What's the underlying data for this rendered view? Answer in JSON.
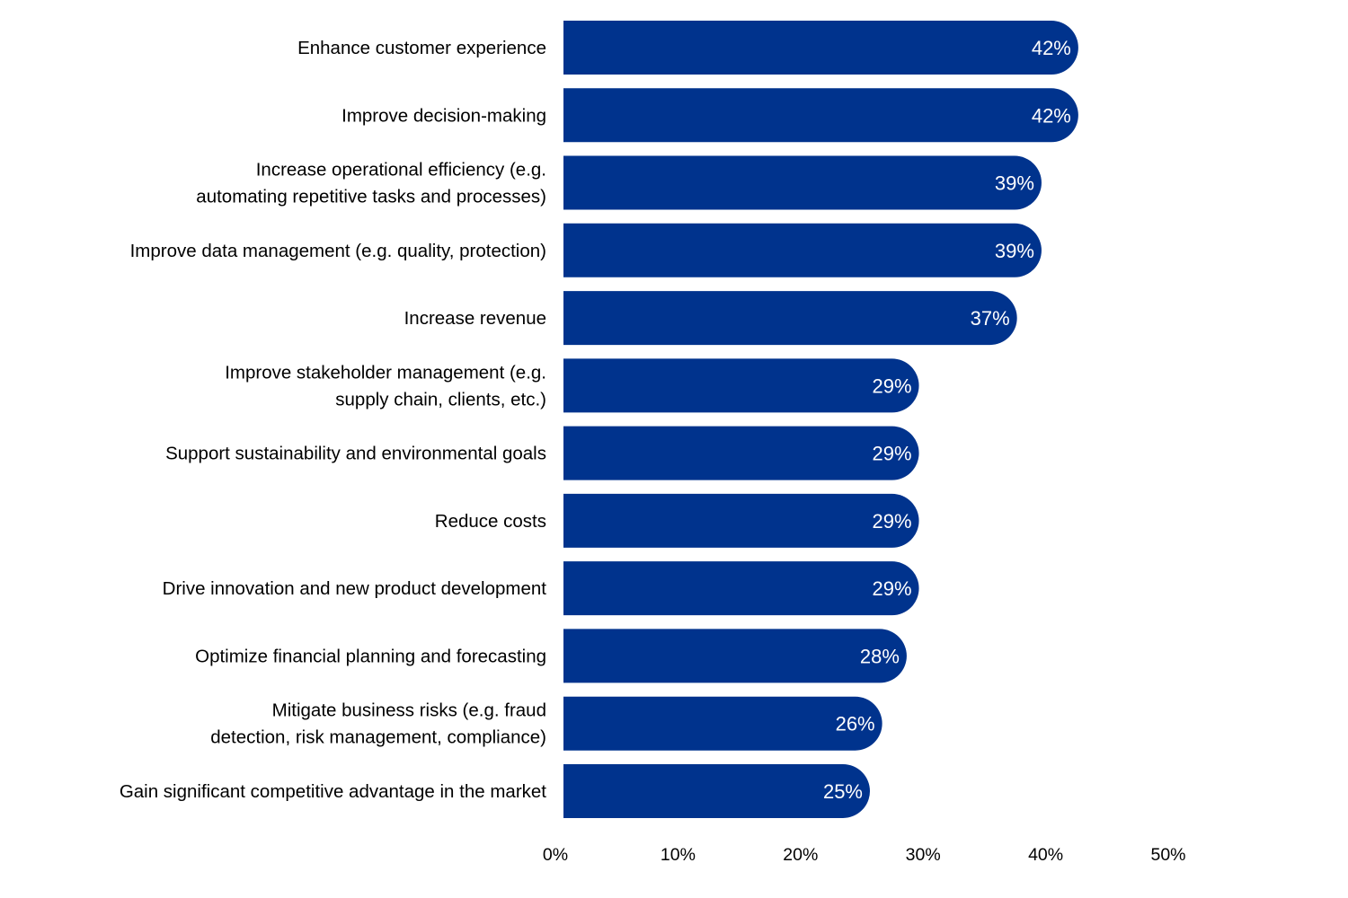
{
  "chart_data": {
    "type": "bar",
    "orientation": "horizontal",
    "title": "",
    "xlabel": "",
    "ylabel": "",
    "xlim": [
      0,
      50
    ],
    "grid": false,
    "bar_color": "#00338D",
    "value_label_color": "#FFFFFF",
    "categories": [
      [
        "Enhance customer experience"
      ],
      [
        "Improve decision-making"
      ],
      [
        "Increase operational efficiency (e.g.",
        "automating repetitive tasks and processes)"
      ],
      [
        "Improve data management (e.g. quality, protection)"
      ],
      [
        "Increase revenue"
      ],
      [
        "Improve stakeholder management (e.g.",
        "supply chain, clients, etc.)"
      ],
      [
        "Support sustainability and environmental goals"
      ],
      [
        "Reduce costs"
      ],
      [
        "Drive innovation and new product development"
      ],
      [
        "Optimize financial planning and forecasting"
      ],
      [
        "Mitigate business risks (e.g. fraud",
        "detection, risk management, compliance)"
      ],
      [
        "Gain significant competitive advantage in the market"
      ]
    ],
    "values": [
      42,
      42,
      39,
      39,
      37,
      29,
      29,
      29,
      29,
      28,
      26,
      25
    ],
    "value_labels": [
      "42%",
      "42%",
      "39%",
      "39%",
      "37%",
      "29%",
      "29%",
      "29%",
      "29%",
      "28%",
      "26%",
      "25%"
    ],
    "x_ticks": [
      0,
      10,
      20,
      30,
      40,
      50
    ],
    "x_tick_labels": [
      "0%",
      "10%",
      "20%",
      "30%",
      "40%",
      "50%"
    ]
  }
}
